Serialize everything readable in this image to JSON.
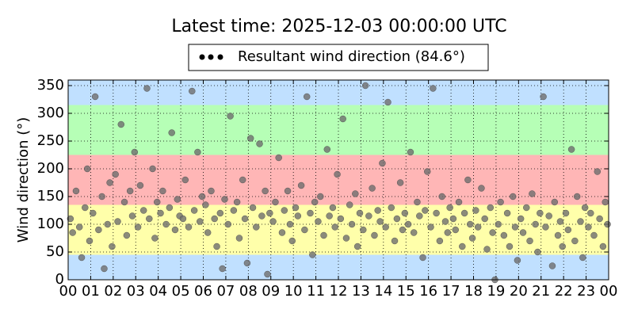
{
  "chart_data": {
    "type": "scatter",
    "title": "Latest time: 2025-12-03 00:00:00 UTC",
    "ylabel": "Wind direction (°)",
    "xlim": [
      0,
      24
    ],
    "ylim": [
      0,
      360
    ],
    "xticks": [
      {
        "value": 0,
        "label": "00"
      },
      {
        "value": 1,
        "label": "01"
      },
      {
        "value": 2,
        "label": "02"
      },
      {
        "value": 3,
        "label": "03"
      },
      {
        "value": 4,
        "label": "04"
      },
      {
        "value": 5,
        "label": "05"
      },
      {
        "value": 6,
        "label": "06"
      },
      {
        "value": 7,
        "label": "07"
      },
      {
        "value": 8,
        "label": "08"
      },
      {
        "value": 9,
        "label": "09"
      },
      {
        "value": 10,
        "label": "10"
      },
      {
        "value": 11,
        "label": "11"
      },
      {
        "value": 12,
        "label": "12"
      },
      {
        "value": 13,
        "label": "13"
      },
      {
        "value": 14,
        "label": "14"
      },
      {
        "value": 15,
        "label": "15"
      },
      {
        "value": 16,
        "label": "16"
      },
      {
        "value": 17,
        "label": "17"
      },
      {
        "value": 18,
        "label": "18"
      },
      {
        "value": 19,
        "label": "19"
      },
      {
        "value": 20,
        "label": "20"
      },
      {
        "value": 21,
        "label": "21"
      },
      {
        "value": 22,
        "label": "22"
      },
      {
        "value": 23,
        "label": "23"
      },
      {
        "value": 24,
        "label": "00"
      }
    ],
    "yticks": [
      0,
      50,
      100,
      150,
      200,
      250,
      300,
      350
    ],
    "grid": true,
    "bands": [
      {
        "from": 0,
        "to": 45,
        "color": "#c0e0ff"
      },
      {
        "from": 45,
        "to": 135,
        "color": "#ffffaa"
      },
      {
        "from": 135,
        "to": 225,
        "color": "#ffb6b6"
      },
      {
        "from": 225,
        "to": 315,
        "color": "#b6ffb6"
      },
      {
        "from": 315,
        "to": 360,
        "color": "#c0e0ff"
      }
    ],
    "series": [
      {
        "name": "Resultant wind direction (84.6°)",
        "color": "#6e6e6e",
        "x": [
          0.1,
          0.2,
          0.35,
          0.5,
          0.6,
          0.75,
          0.85,
          0.95,
          1.1,
          1.2,
          1.35,
          1.5,
          1.6,
          1.75,
          1.85,
          1.95,
          2.1,
          2.2,
          2.35,
          2.5,
          2.6,
          2.75,
          2.85,
          2.95,
          3.1,
          3.2,
          3.35,
          3.5,
          3.6,
          3.75,
          3.85,
          3.95,
          4.1,
          4.2,
          4.35,
          4.5,
          4.6,
          4.75,
          4.85,
          4.95,
          5.1,
          5.2,
          5.35,
          5.5,
          5.6,
          5.75,
          5.85,
          5.95,
          6.1,
          6.2,
          6.35,
          6.5,
          6.6,
          6.75,
          6.85,
          6.95,
          7.1,
          7.2,
          7.35,
          7.5,
          7.6,
          7.75,
          7.85,
          7.95,
          8.1,
          8.2,
          8.35,
          8.5,
          8.6,
          8.75,
          8.85,
          8.95,
          9.1,
          9.2,
          9.35,
          9.5,
          9.6,
          9.75,
          9.85,
          9.95,
          10.1,
          10.2,
          10.35,
          10.5,
          10.6,
          10.75,
          10.85,
          10.95,
          11.1,
          11.2,
          11.35,
          11.5,
          11.6,
          11.75,
          11.85,
          11.95,
          12.1,
          12.2,
          12.35,
          12.5,
          12.6,
          12.75,
          12.85,
          12.95,
          13.1,
          13.2,
          13.35,
          13.5,
          13.6,
          13.75,
          13.85,
          13.95,
          14.1,
          14.2,
          14.35,
          14.5,
          14.6,
          14.75,
          14.85,
          14.95,
          15.1,
          15.2,
          15.35,
          15.5,
          15.6,
          15.75,
          15.85,
          15.95,
          16.1,
          16.2,
          16.35,
          16.5,
          16.6,
          16.75,
          16.85,
          16.95,
          17.1,
          17.2,
          17.35,
          17.5,
          17.6,
          17.75,
          17.85,
          17.95,
          18.1,
          18.2,
          18.35,
          18.5,
          18.6,
          18.75,
          18.85,
          18.95,
          19.1,
          19.2,
          19.35,
          19.5,
          19.6,
          19.75,
          19.85,
          19.95,
          20.1,
          20.2,
          20.35,
          20.5,
          20.6,
          20.75,
          20.85,
          20.95,
          21.1,
          21.2,
          21.35,
          21.5,
          21.6,
          21.75,
          21.85,
          21.95,
          22.1,
          22.2,
          22.35,
          22.5,
          22.6,
          22.75,
          22.85,
          22.95,
          23.1,
          23.2,
          23.35,
          23.5,
          23.6,
          23.75,
          23.85,
          23.95
        ],
        "values": [
          110,
          85,
          160,
          95,
          40,
          130,
          200,
          70,
          120,
          330,
          90,
          150,
          20,
          100,
          175,
          60,
          190,
          105,
          280,
          140,
          80,
          160,
          115,
          230,
          95,
          170,
          125,
          345,
          110,
          200,
          75,
          140,
          120,
          160,
          100,
          130,
          265,
          90,
          145,
          115,
          110,
          180,
          95,
          340,
          125,
          230,
          105,
          150,
          135,
          85,
          160,
          110,
          60,
          120,
          20,
          145,
          100,
          295,
          125,
          140,
          75,
          180,
          110,
          30,
          255,
          130,
          95,
          245,
          115,
          160,
          10,
          120,
          105,
          140,
          220,
          85,
          125,
          160,
          100,
          70,
          130,
          115,
          170,
          90,
          330,
          120,
          45,
          140,
          105,
          150,
          80,
          235,
          115,
          130,
          95,
          190,
          110,
          290,
          75,
          135,
          100,
          155,
          60,
          120,
          90,
          350,
          115,
          165,
          80,
          125,
          105,
          210,
          95,
          320,
          130,
          70,
          110,
          175,
          90,
          120,
          100,
          230,
          85,
          140,
          115,
          40,
          125,
          195,
          95,
          345,
          120,
          70,
          150,
          105,
          85,
          130,
          110,
          90,
          140,
          60,
          120,
          180,
          100,
          75,
          125,
          95,
          165,
          110,
          55,
          130,
          85,
          0,
          100,
          140,
          80,
          120,
          60,
          150,
          95,
          35,
          110,
          85,
          130,
          70,
          155,
          100,
          50,
          120,
          330,
          95,
          115,
          25,
          140,
          80,
          105,
          60,
          120,
          90,
          235,
          70,
          150,
          105,
          40,
          130,
          95,
          120,
          80,
          195,
          110,
          60,
          140,
          100
        ]
      }
    ]
  }
}
